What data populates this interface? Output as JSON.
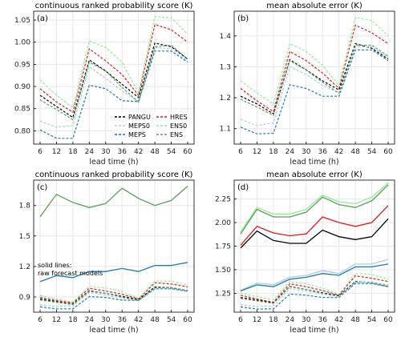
{
  "chart_data": [
    {
      "id": "a",
      "type": "line",
      "panel_label": "(a)",
      "title": "continuous ranked probability score (K)",
      "xlabel": "lead time (h)",
      "ylabel": "",
      "x": [
        6,
        12,
        18,
        24,
        30,
        36,
        42,
        48,
        54,
        60
      ],
      "xticks": [
        "6",
        "12",
        "18",
        "24",
        "30",
        "36",
        "42",
        "48",
        "54",
        "60"
      ],
      "ylim": [
        0.77,
        1.07
      ],
      "yticks": [
        0.8,
        0.85,
        0.9,
        0.95,
        1.0,
        1.05
      ],
      "ytick_labels": [
        "0.80",
        "0.85",
        "0.90",
        "0.95",
        "1.00",
        "1.05"
      ],
      "legend_position": "bottom-right",
      "legend_ncol": 2,
      "series": [
        {
          "name": "PANGU",
          "color": "#000000",
          "dash": "3,2",
          "values": [
            0.88,
            0.855,
            0.83,
            0.96,
            0.935,
            0.905,
            0.875,
            0.998,
            0.99,
            0.962
          ]
        },
        {
          "name": "HRES",
          "color": "#e41a1c",
          "dash": "3,2",
          "values": [
            0.895,
            0.865,
            0.842,
            0.985,
            0.958,
            0.927,
            0.88,
            1.04,
            1.028,
            1.0
          ]
        },
        {
          "name": "MEPS0",
          "color": "#a6cee3",
          "dash": "3,2",
          "values": [
            0.822,
            0.808,
            0.812,
            0.945,
            0.918,
            0.89,
            0.866,
            0.988,
            0.985,
            0.958
          ]
        },
        {
          "name": "ENS0",
          "color": "#90ee90",
          "dash": "3,2",
          "values": [
            0.915,
            0.88,
            0.852,
            1.003,
            0.988,
            0.955,
            0.885,
            1.058,
            1.055,
            1.018
          ]
        },
        {
          "name": "MEPS",
          "color": "#1f78b4",
          "dash": "3,2",
          "values": [
            0.802,
            0.783,
            0.783,
            0.903,
            0.895,
            0.868,
            0.866,
            0.98,
            0.98,
            0.955
          ]
        },
        {
          "name": "ENS",
          "color": "#5a9e5a",
          "dash": "3,2",
          "values": [
            0.87,
            0.848,
            0.825,
            0.955,
            0.935,
            0.898,
            0.865,
            0.99,
            0.993,
            0.962
          ]
        }
      ]
    },
    {
      "id": "b",
      "type": "line",
      "panel_label": "(b)",
      "title": "mean absolute error (K)",
      "xlabel": "lead time (h)",
      "ylabel": "",
      "x": [
        6,
        12,
        18,
        24,
        30,
        36,
        42,
        48,
        54,
        60
      ],
      "xticks": [
        "6",
        "12",
        "18",
        "24",
        "30",
        "36",
        "42",
        "48",
        "54",
        "60"
      ],
      "ylim": [
        1.05,
        1.48
      ],
      "yticks": [
        1.1,
        1.2,
        1.3,
        1.4
      ],
      "ytick_labels": [
        "1.1",
        "1.2",
        "1.3",
        "1.4"
      ],
      "series": [
        {
          "name": "PANGU",
          "color": "#000000",
          "dash": "3,2",
          "values": [
            1.205,
            1.18,
            1.148,
            1.323,
            1.29,
            1.255,
            1.225,
            1.375,
            1.36,
            1.325
          ]
        },
        {
          "name": "HRES",
          "color": "#e41a1c",
          "dash": "3,2",
          "values": [
            1.23,
            1.19,
            1.155,
            1.35,
            1.32,
            1.28,
            1.23,
            1.435,
            1.41,
            1.375
          ]
        },
        {
          "name": "MEPS0",
          "color": "#a6cee3",
          "dash": "3,2",
          "values": [
            1.13,
            1.11,
            1.118,
            1.3,
            1.275,
            1.24,
            1.215,
            1.365,
            1.365,
            1.33
          ]
        },
        {
          "name": "ENS0",
          "color": "#90ee90",
          "dash": "3,2",
          "values": [
            1.255,
            1.215,
            1.18,
            1.375,
            1.35,
            1.305,
            1.24,
            1.46,
            1.45,
            1.4
          ]
        },
        {
          "name": "MEPS",
          "color": "#1f78b4",
          "dash": "3,2",
          "values": [
            1.105,
            1.083,
            1.085,
            1.242,
            1.23,
            1.205,
            1.205,
            1.355,
            1.355,
            1.32
          ]
        },
        {
          "name": "ENS",
          "color": "#5a9e5a",
          "dash": "3,2",
          "values": [
            1.195,
            1.17,
            1.143,
            1.32,
            1.29,
            1.25,
            1.215,
            1.37,
            1.37,
            1.335
          ]
        }
      ]
    },
    {
      "id": "c",
      "type": "line",
      "panel_label": "(c)",
      "title": "continuous ranked probability score (K)",
      "xlabel": "lead time (h)",
      "ylabel": "",
      "annotation": [
        "solid lines:",
        "raw forecast models"
      ],
      "x": [
        6,
        12,
        18,
        24,
        30,
        36,
        42,
        48,
        54,
        60
      ],
      "xticks": [
        "6",
        "12",
        "18",
        "24",
        "30",
        "36",
        "42",
        "48",
        "54",
        "60"
      ],
      "ylim": [
        0.75,
        2.05
      ],
      "yticks": [
        0.9,
        1.2,
        1.5,
        1.8
      ],
      "ytick_labels": [
        "0.9",
        "1.2",
        "1.5",
        "1.8"
      ],
      "series": [
        {
          "name": "ENS",
          "color": "#5a9e5a",
          "dash": "",
          "values": [
            1.69,
            1.91,
            1.83,
            1.78,
            1.82,
            1.97,
            1.87,
            1.8,
            1.85,
            1.99
          ]
        },
        {
          "name": "MEPS",
          "color": "#1f78b4",
          "dash": "",
          "values": [
            1.05,
            1.11,
            1.09,
            1.15,
            1.15,
            1.18,
            1.15,
            1.21,
            1.21,
            1.24
          ]
        },
        {
          "name": "MEPS",
          "color": "#1f78b4",
          "dash": "3,2",
          "values": [
            0.802,
            0.783,
            0.783,
            0.903,
            0.895,
            0.868,
            0.866,
            0.98,
            0.98,
            0.955
          ]
        },
        {
          "name": "MEPS0",
          "color": "#a6cee3",
          "dash": "3,2",
          "values": [
            0.822,
            0.808,
            0.812,
            0.945,
            0.918,
            0.89,
            0.866,
            0.988,
            0.985,
            0.958
          ]
        },
        {
          "name": "PANGU",
          "color": "#000000",
          "dash": "3,2",
          "values": [
            0.88,
            0.855,
            0.83,
            0.96,
            0.935,
            0.905,
            0.875,
            0.998,
            0.99,
            0.962
          ]
        },
        {
          "name": "HRES",
          "color": "#e41a1c",
          "dash": "3,2",
          "values": [
            0.895,
            0.865,
            0.842,
            0.985,
            0.958,
            0.927,
            0.88,
            1.04,
            1.028,
            1.0
          ]
        },
        {
          "name": "ENS0",
          "color": "#90ee90",
          "dash": "3,2",
          "values": [
            0.915,
            0.88,
            0.852,
            1.003,
            0.988,
            0.955,
            0.885,
            1.058,
            1.055,
            1.018
          ]
        },
        {
          "name": "ENS",
          "color": "#5a9e5a",
          "dash": "3,2",
          "values": [
            0.87,
            0.848,
            0.825,
            0.955,
            0.935,
            0.898,
            0.865,
            0.99,
            0.993,
            0.962
          ]
        }
      ]
    },
    {
      "id": "d",
      "type": "line",
      "panel_label": "(d)",
      "title": "mean absolute error (K)",
      "xlabel": "lead time (h)",
      "ylabel": "",
      "x": [
        6,
        12,
        18,
        24,
        30,
        36,
        42,
        48,
        54,
        60
      ],
      "xticks": [
        "6",
        "12",
        "18",
        "24",
        "30",
        "36",
        "42",
        "48",
        "54",
        "60"
      ],
      "ylim": [
        1.05,
        2.45
      ],
      "yticks": [
        1.25,
        1.5,
        1.75,
        2.0,
        2.25
      ],
      "ytick_labels": [
        "1.25",
        "1.50",
        "1.75",
        "2.00",
        "2.25"
      ],
      "series": [
        {
          "name": "ENS0",
          "color": "#90ee90",
          "dash": "",
          "values": [
            1.9,
            2.16,
            2.09,
            2.09,
            2.14,
            2.29,
            2.22,
            2.2,
            2.27,
            2.42
          ]
        },
        {
          "name": "ENS",
          "color": "#5a9e5a",
          "dash": "",
          "values": [
            1.88,
            2.14,
            2.06,
            2.06,
            2.11,
            2.27,
            2.19,
            2.16,
            2.23,
            2.4
          ]
        },
        {
          "name": "HRES",
          "color": "#e41a1c",
          "dash": "",
          "values": [
            1.76,
            1.96,
            1.89,
            1.86,
            1.88,
            2.06,
            2.0,
            1.96,
            2.0,
            2.18
          ]
        },
        {
          "name": "PANGU",
          "color": "#000000",
          "dash": "",
          "values": [
            1.73,
            1.91,
            1.81,
            1.78,
            1.78,
            1.92,
            1.85,
            1.82,
            1.85,
            2.04
          ]
        },
        {
          "name": "MEPS0",
          "color": "#a6cee3",
          "dash": "",
          "values": [
            1.28,
            1.36,
            1.34,
            1.42,
            1.44,
            1.49,
            1.46,
            1.56,
            1.56,
            1.61
          ]
        },
        {
          "name": "MEPS",
          "color": "#1f78b4",
          "dash": "",
          "values": [
            1.275,
            1.34,
            1.32,
            1.4,
            1.42,
            1.46,
            1.44,
            1.53,
            1.53,
            1.56
          ]
        },
        {
          "name": "ENS0",
          "color": "#90ee90",
          "dash": "3,2",
          "values": [
            1.255,
            1.215,
            1.18,
            1.375,
            1.35,
            1.305,
            1.24,
            1.46,
            1.45,
            1.4
          ]
        },
        {
          "name": "HRES",
          "color": "#e41a1c",
          "dash": "3,2",
          "values": [
            1.23,
            1.19,
            1.155,
            1.35,
            1.32,
            1.28,
            1.23,
            1.435,
            1.41,
            1.375
          ]
        },
        {
          "name": "PANGU",
          "color": "#000000",
          "dash": "3,2",
          "values": [
            1.205,
            1.18,
            1.148,
            1.323,
            1.29,
            1.255,
            1.225,
            1.375,
            1.36,
            1.325
          ]
        },
        {
          "name": "ENS",
          "color": "#5a9e5a",
          "dash": "3,2",
          "values": [
            1.195,
            1.17,
            1.143,
            1.32,
            1.29,
            1.25,
            1.215,
            1.37,
            1.37,
            1.335
          ]
        },
        {
          "name": "MEPS0",
          "color": "#a6cee3",
          "dash": "3,2",
          "values": [
            1.13,
            1.11,
            1.118,
            1.3,
            1.275,
            1.24,
            1.215,
            1.365,
            1.365,
            1.33
          ]
        },
        {
          "name": "MEPS",
          "color": "#1f78b4",
          "dash": "3,2",
          "values": [
            1.105,
            1.083,
            1.085,
            1.242,
            1.23,
            1.205,
            1.205,
            1.355,
            1.355,
            1.32
          ]
        }
      ]
    }
  ]
}
